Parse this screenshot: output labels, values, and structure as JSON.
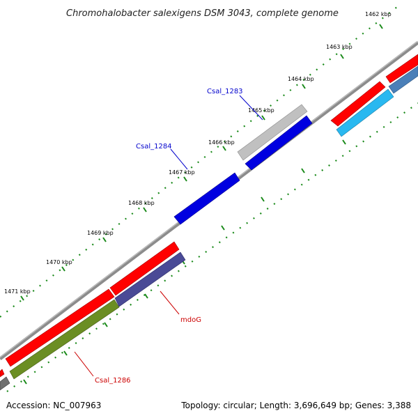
{
  "title": "Chromohalobacter salexigens DSM 3043, complete genome",
  "accession": "Accession: NC_007963",
  "summary": "Topology: circular; Length: 3,696,649 bp; Genes: 3,388",
  "ticks": [
    "1462 kbp",
    "1463 kbp",
    "1464 kbp",
    "1465 kbp",
    "1466 kbp",
    "1467 kbp",
    "1468 kbp",
    "1469 kbp",
    "1470 kbp",
    "1471 kbp"
  ],
  "gene_labels": {
    "csal_1283": "Csal_1283",
    "csal_1284": "Csal_1284",
    "mdog": "mdoG",
    "csal_1286": "Csal_1286"
  },
  "colors": {
    "backbone": "#8c8c8c",
    "cds_red": "#ff0000",
    "cds_blue": "#0000e0",
    "cds_gray": "#c0c0c0",
    "cds_cyan": "#29b8f0",
    "cds_steel": "#4a7fb8",
    "cds_indigo": "#4a4a96",
    "cds_olive": "#6b8e23",
    "tick_green": "#1a8a1a",
    "label_blue": "#0000cc",
    "label_red": "#cc0000"
  }
}
